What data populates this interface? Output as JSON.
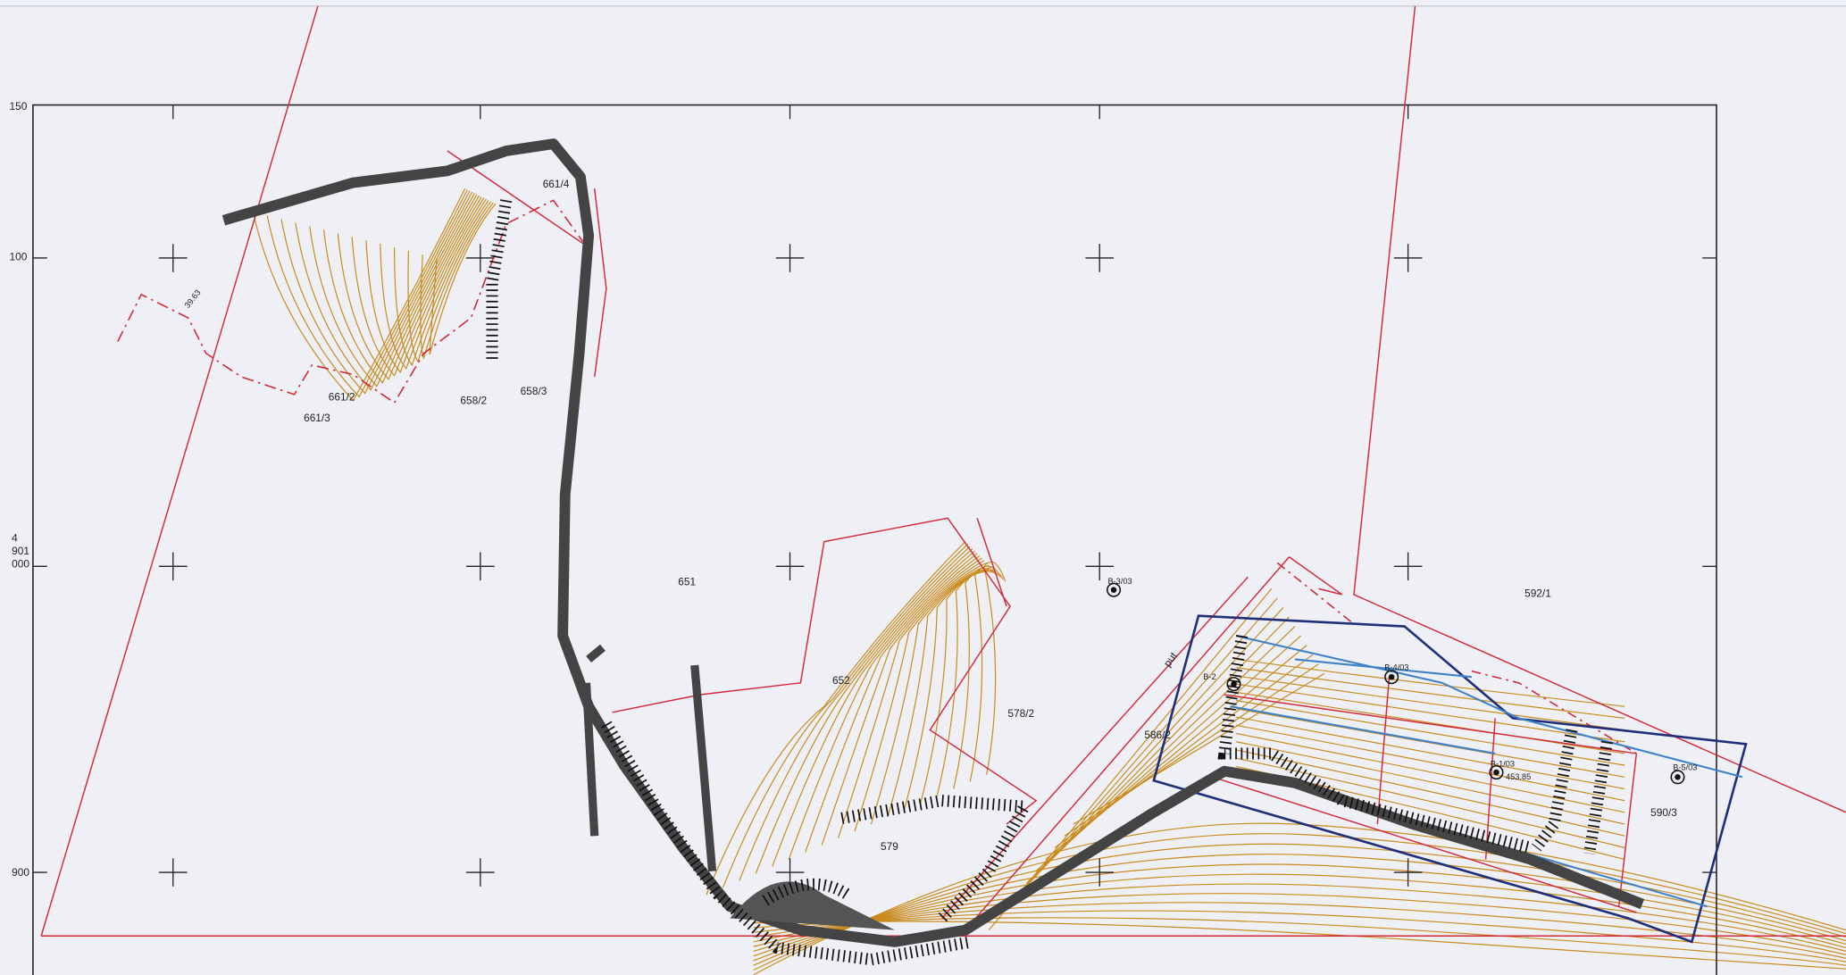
{
  "grid_labels": [
    "150",
    "100",
    "4",
    "901",
    "000",
    "900"
  ],
  "parcels": [
    "661/4",
    "661/2",
    "661/3",
    "658/2",
    "658/3",
    "651",
    "652",
    "578/2",
    "586/2",
    "579",
    "592/1",
    "590/3"
  ],
  "boreholes": [
    "B-3/03",
    "B-2",
    "B-4/03",
    "B-1/03",
    "B-5/03"
  ],
  "annotations": [
    "39.63",
    "put",
    "453.85"
  ]
}
